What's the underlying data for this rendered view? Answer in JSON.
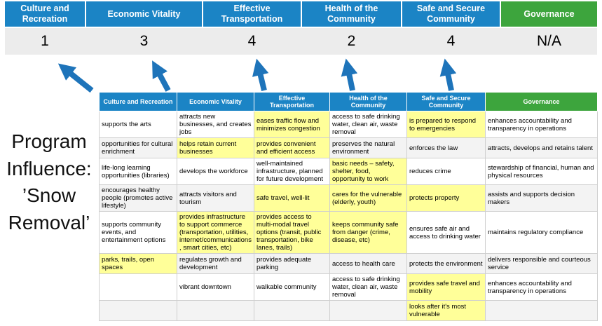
{
  "title": "Program Influence: ’Snow Removal’",
  "colors": {
    "header_blue": "#1B84C5",
    "header_green": "#3DA53D",
    "highlight_yellow": "#FFFF99",
    "arrow": "#1E74BA",
    "score_band": "#ECECEC"
  },
  "banner": {
    "columns": [
      {
        "label": "Culture and Recreation",
        "score": "1",
        "color": "#1B84C5"
      },
      {
        "label": "Economic Vitality",
        "score": "3",
        "color": "#1B84C5"
      },
      {
        "label": "Effective Transportation",
        "score": "4",
        "color": "#1B84C5"
      },
      {
        "label": "Health of the Community",
        "score": "2",
        "color": "#1B84C5"
      },
      {
        "label": "Safe and Secure Community",
        "score": "4",
        "color": "#1B84C5"
      },
      {
        "label": "Governance",
        "score": "N/A",
        "color": "#3DA53D"
      }
    ]
  },
  "table": {
    "highlight_color": "#FFFF99",
    "headers": [
      {
        "label": "Culture and Recreation",
        "color": "#1B84C5"
      },
      {
        "label": "Economic Vitality",
        "color": "#1B84C5"
      },
      {
        "label": "Effective Transportation",
        "color": "#1B84C5"
      },
      {
        "label": "Health of the Community",
        "color": "#1B84C5"
      },
      {
        "label": "Safe and Secure Community",
        "color": "#1B84C5"
      },
      {
        "label": "Governance",
        "color": "#3DA53D"
      }
    ],
    "rows": [
      [
        {
          "text": "supports the arts",
          "highlight": false
        },
        {
          "text": "attracts new businesses, and creates jobs",
          "highlight": false
        },
        {
          "text": "eases traffic flow and minimizes congestion",
          "highlight": true
        },
        {
          "text": "access to safe drinking water, clean air, waste removal",
          "highlight": false
        },
        {
          "text": "is prepared to respond to emergencies",
          "highlight": true
        },
        {
          "text": "enhances accountability and transparency in operations",
          "highlight": false
        }
      ],
      [
        {
          "text": "opportunities for cultural enrichment",
          "highlight": false
        },
        {
          "text": "helps retain current businesses",
          "highlight": true
        },
        {
          "text": "provides convenient and efficient access",
          "highlight": true
        },
        {
          "text": "preserves the natural environment",
          "highlight": false
        },
        {
          "text": "enforces the law",
          "highlight": false
        },
        {
          "text": "attracts, develops and retains talent",
          "highlight": false
        }
      ],
      [
        {
          "text": "life-long learning opportunities (libraries)",
          "highlight": false
        },
        {
          "text": "develops the workforce",
          "highlight": false
        },
        {
          "text": "well-maintained infrastructure, planned for future development",
          "highlight": false
        },
        {
          "text": "basic needs – safety, shelter, food, opportunity to work",
          "highlight": true
        },
        {
          "text": "reduces crime",
          "highlight": false
        },
        {
          "text": "stewardship of financial, human and physical resources",
          "highlight": false
        }
      ],
      [
        {
          "text": "encourages healthy people (promotes active lifestyle)",
          "highlight": false
        },
        {
          "text": "attracts visitors and tourism",
          "highlight": false
        },
        {
          "text": "safe travel, well-lit",
          "highlight": true
        },
        {
          "text": "cares for the vulnerable (elderly, youth)",
          "highlight": true
        },
        {
          "text": "protects property",
          "highlight": true
        },
        {
          "text": "assists and supports decision makers",
          "highlight": false
        }
      ],
      [
        {
          "text": "supports community events, and entertainment options",
          "highlight": false
        },
        {
          "text": "provides infrastructure to support commerce (transportation, utilities, internet/communications, smart cities, etc)",
          "highlight": true
        },
        {
          "text": "provides access to multi-modal travel options (transit, public transportation, bike lanes, trails)",
          "highlight": true
        },
        {
          "text": "keeps community safe from danger (crime, disease, etc)",
          "highlight": true
        },
        {
          "text": "ensures safe air and access to drinking water",
          "highlight": false
        },
        {
          "text": "maintains regulatory compliance",
          "highlight": false
        }
      ],
      [
        {
          "text": "parks, trails, open spaces",
          "highlight": true
        },
        {
          "text": "regulates growth and development",
          "highlight": false
        },
        {
          "text": "provides adequate parking",
          "highlight": false
        },
        {
          "text": "access to health care",
          "highlight": false
        },
        {
          "text": "protects the environment",
          "highlight": false
        },
        {
          "text": "delivers responsible and courteous service",
          "highlight": false
        }
      ],
      [
        {
          "text": "",
          "highlight": false
        },
        {
          "text": "vibrant downtown",
          "highlight": false
        },
        {
          "text": "walkable community",
          "highlight": false
        },
        {
          "text": "access to safe drinking water, clean air, waste removal",
          "highlight": false
        },
        {
          "text": "provides safe travel and mobility",
          "highlight": true
        },
        {
          "text": "enhances accountability and transparency in operations",
          "highlight": false
        }
      ],
      [
        {
          "text": "",
          "highlight": false
        },
        {
          "text": "",
          "highlight": false
        },
        {
          "text": "",
          "highlight": false
        },
        {
          "text": "",
          "highlight": false
        },
        {
          "text": "looks after it's most vulnerable",
          "highlight": true
        },
        {
          "text": "",
          "highlight": false
        }
      ]
    ]
  }
}
